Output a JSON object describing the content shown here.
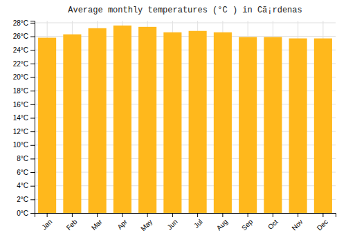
{
  "chart_data": {
    "type": "bar",
    "title": "Average monthly temperatures (°C ) in Cã¡rdenas",
    "categories": [
      "Jan",
      "Feb",
      "Mar",
      "Apr",
      "May",
      "Jun",
      "Jul",
      "Aug",
      "Sep",
      "Oct",
      "Nov",
      "Dec"
    ],
    "values": [
      25.8,
      26.3,
      27.2,
      27.6,
      27.4,
      26.6,
      26.8,
      26.6,
      25.9,
      25.9,
      25.7,
      25.7
    ],
    "color": "#FFB81C",
    "ylim": [
      0,
      28.3
    ],
    "yticks": [
      {
        "value": 0,
        "label": "0°C"
      },
      {
        "value": 2,
        "label": "2°C"
      },
      {
        "value": 4,
        "label": "4°C"
      },
      {
        "value": 6,
        "label": "6°C"
      },
      {
        "value": 8,
        "label": "8°C"
      },
      {
        "value": 10,
        "label": "10°C"
      },
      {
        "value": 12,
        "label": "12°C"
      },
      {
        "value": 14,
        "label": "14°C"
      },
      {
        "value": 16,
        "label": "16°C"
      },
      {
        "value": 18,
        "label": "18°C"
      },
      {
        "value": 20,
        "label": "20°C"
      },
      {
        "value": 22,
        "label": "22°C"
      },
      {
        "value": 24,
        "label": "24°C"
      },
      {
        "value": 26,
        "label": "26°C"
      },
      {
        "value": 28,
        "label": "28°C"
      }
    ],
    "grid": true
  }
}
